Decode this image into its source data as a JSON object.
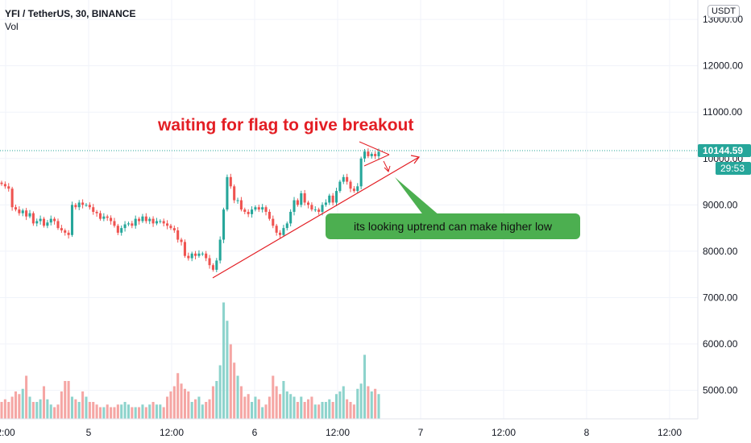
{
  "header": {
    "symbol_line": "YFI / TetherUS, 30, BINANCE",
    "indicator": "Vol"
  },
  "currency_button": "USDT",
  "price_tags": {
    "last": "10144.59",
    "countdown": "29:53"
  },
  "annotations": {
    "headline": "waiting for flag to give breakout",
    "callout": "its looking uptrend can make higher low"
  },
  "colors": {
    "up": "#26a69a",
    "down": "#ef5350",
    "up_vol": "#8dd3cc",
    "down_vol": "#f5a6a4",
    "annotation": "#e31e24",
    "callout_bg": "#4caf50"
  },
  "chart_data": {
    "type": "candlestick",
    "x_tick_labels": [
      "2:00",
      "5",
      "12:00",
      "6",
      "12:00",
      "7",
      "12:00",
      "8",
      "12:00"
    ],
    "y_tick_labels": [
      "13000.00",
      "12000.00",
      "11000.00",
      "10000.00",
      "9000.00",
      "8000.00",
      "7000.00",
      "6000.00",
      "5000.00"
    ],
    "y_ticks": [
      13000,
      12000,
      11000,
      10000,
      9000,
      8000,
      7000,
      6000,
      5000
    ],
    "last_price": 10144.59,
    "close": [
      9450,
      9400,
      9350,
      8950,
      8900,
      8820,
      8880,
      8750,
      8820,
      8600,
      8650,
      8700,
      8550,
      8620,
      8700,
      8650,
      8500,
      8450,
      8400,
      8350,
      9000,
      8950,
      9050,
      9000,
      9000,
      8950,
      8850,
      8820,
      8700,
      8750,
      8720,
      8650,
      8550,
      8400,
      8500,
      8580,
      8600,
      8550,
      8700,
      8650,
      8750,
      8650,
      8700,
      8600,
      8650,
      8650,
      8600,
      8550,
      8500,
      8450,
      8250,
      8200,
      7900,
      7850,
      7950,
      7900,
      7950,
      7950,
      7850,
      7700,
      7600,
      7800,
      8250,
      8900,
      9600,
      9400,
      9100,
      9100,
      8900,
      8850,
      8800,
      8900,
      8950,
      8900,
      8950,
      8850,
      8700,
      8550,
      8400,
      8350,
      8500,
      8600,
      8850,
      9100,
      9000,
      9250,
      9050,
      9000,
      8900,
      8900,
      8850,
      9000,
      9050,
      9200,
      9050,
      9300,
      9500,
      9600,
      9500,
      9350,
      9300,
      9400,
      10000,
      10150,
      10050,
      10100,
      10050,
      10144.59
    ],
    "volume": [
      4700,
      4750,
      4700,
      4800,
      4900,
      4850,
      4950,
      5200,
      4800,
      4700,
      4700,
      4750,
      5000,
      4750,
      4650,
      4600,
      4650,
      4900,
      5100,
      5100,
      4800,
      4750,
      4700,
      4900,
      4800,
      4700,
      4700,
      4650,
      4600,
      4600,
      4650,
      4600,
      4600,
      4650,
      4650,
      4700,
      4650,
      4600,
      4600,
      4600,
      4650,
      4600,
      4650,
      4700,
      4650,
      4650,
      4600,
      4800,
      4900,
      5000,
      5250,
      5050,
      4950,
      4900,
      4700,
      4750,
      4800,
      4650,
      4700,
      4750,
      5000,
      5100,
      5400,
      6600,
      6250,
      5800,
      5450,
      5200,
      5000,
      4800,
      4850,
      4700,
      4800,
      4750,
      4600,
      4650,
      4800,
      5200,
      5000,
      4850,
      5100,
      4900,
      4850,
      4800,
      4700,
      4800,
      4700,
      4750,
      4800,
      4650,
      4650,
      4700,
      4700,
      4750,
      4700,
      4850,
      4900,
      5000,
      4750,
      4700,
      4650,
      4950,
      5050,
      5600,
      5000,
      4900,
      4950,
      4850
    ]
  }
}
